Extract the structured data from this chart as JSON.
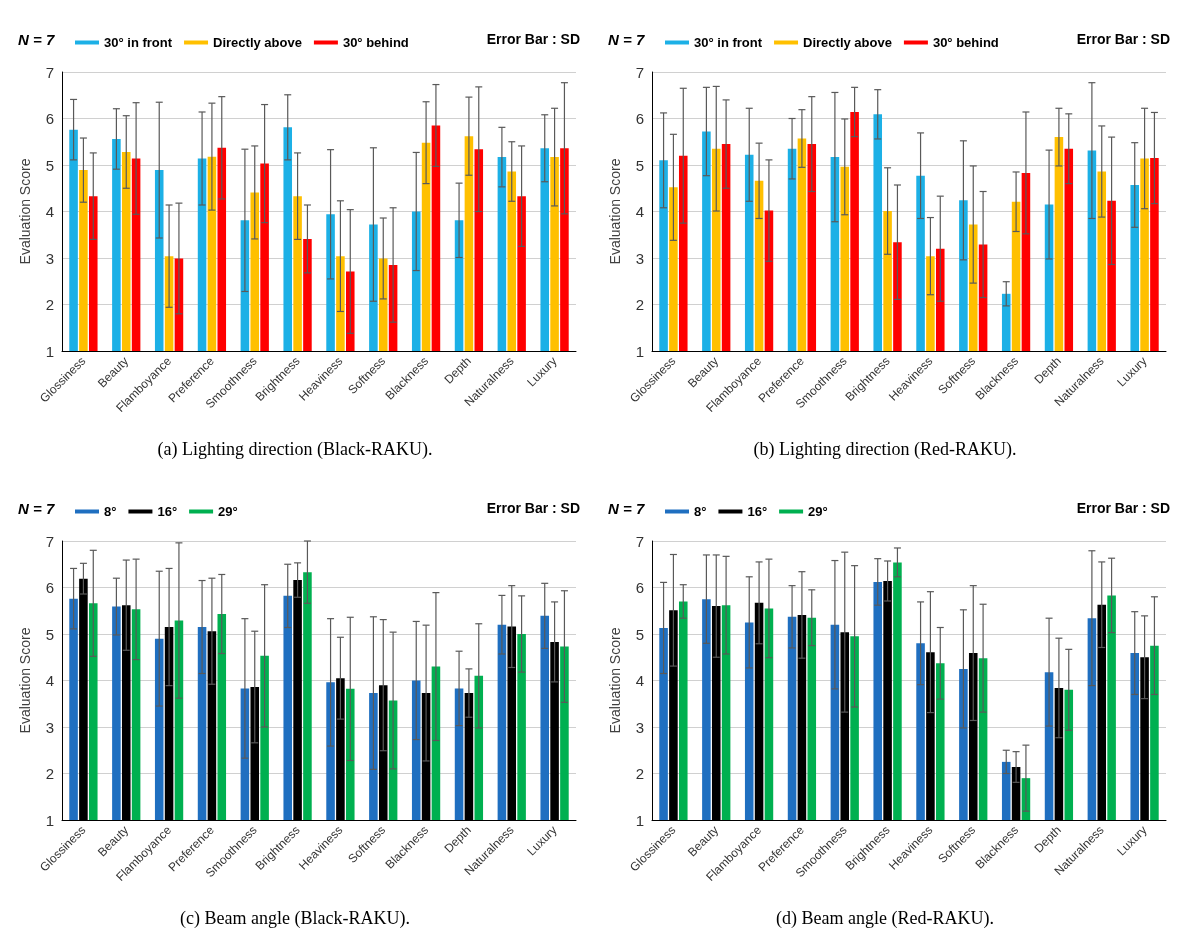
{
  "chart_data": [
    {
      "type": "bar",
      "title": "(a) Lighting direction (Black-RAKU).",
      "ylabel": "Evaluation Score",
      "annotations": [
        "N = 7",
        "Error Bar : SD"
      ],
      "categories": [
        "Glossiness",
        "Beauty",
        "Flamboyance",
        "Preference",
        "Smoothness",
        "Brightness",
        "Heaviness",
        "Softness",
        "Blackness",
        "Depth",
        "Naturalness",
        "Luxury"
      ],
      "series": [
        {
          "name": "30° in front",
          "color": "#1cb0e6",
          "values": [
            5.76,
            5.56,
            4.89,
            5.14,
            3.81,
            5.81,
            3.94,
            3.72,
            4.0,
            3.81,
            5.17,
            5.36
          ],
          "errors": [
            0.65,
            0.65,
            1.46,
            1.0,
            1.53,
            0.7,
            1.39,
            1.65,
            1.27,
            0.8,
            0.64,
            0.72
          ]
        },
        {
          "name": "Directly above",
          "color": "#ffc000",
          "values": [
            4.89,
            5.28,
            3.04,
            5.18,
            4.41,
            4.33,
            3.04,
            2.99,
            5.48,
            5.62,
            4.86,
            5.17
          ],
          "errors": [
            0.69,
            0.78,
            1.1,
            1.15,
            1.0,
            0.93,
            1.19,
            0.87,
            0.88,
            0.84,
            0.64,
            1.05
          ]
        },
        {
          "name": "30° behind",
          "color": "#ff0000",
          "values": [
            4.33,
            5.14,
            2.99,
            5.37,
            5.03,
            3.41,
            2.71,
            2.85,
            5.85,
            5.34,
            4.33,
            5.36
          ],
          "errors": [
            0.93,
            1.2,
            1.19,
            1.1,
            1.27,
            0.73,
            1.33,
            1.23,
            0.88,
            1.34,
            1.08,
            1.41
          ]
        }
      ],
      "ylim": [
        1,
        7
      ],
      "yticks": [
        1,
        2,
        3,
        4,
        5,
        6,
        7
      ],
      "grid": "y",
      "legend": "top"
    },
    {
      "type": "bar",
      "title": "(b) Lighting direction (Red-RAKU).",
      "ylabel": "Evaluation Score",
      "annotations": [
        "N = 7",
        "Error Bar : SD"
      ],
      "categories": [
        "Glossiness",
        "Beauty",
        "Flamboyance",
        "Preference",
        "Smoothness",
        "Brightness",
        "Heaviness",
        "Softness",
        "Blackness",
        "Depth",
        "Naturalness",
        "Luxury"
      ],
      "series": [
        {
          "name": "30° in front",
          "color": "#1cb0e6",
          "values": [
            5.1,
            5.72,
            5.22,
            5.35,
            5.17,
            6.09,
            4.77,
            4.24,
            2.23,
            4.15,
            5.31,
            4.57
          ],
          "errors": [
            1.02,
            0.95,
            1.0,
            0.65,
            1.39,
            0.53,
            0.92,
            1.28,
            0.26,
            1.17,
            1.46,
            0.91
          ]
        },
        {
          "name": "Directly above",
          "color": "#ffc000",
          "values": [
            4.52,
            5.35,
            4.66,
            5.57,
            4.96,
            4.01,
            3.04,
            3.72,
            4.21,
            5.6,
            4.86,
            5.14
          ],
          "errors": [
            1.14,
            1.34,
            0.81,
            0.62,
            1.03,
            0.93,
            0.83,
            1.26,
            0.64,
            0.62,
            0.98,
            1.08
          ]
        },
        {
          "name": "30° behind",
          "color": "#ff0000",
          "values": [
            5.2,
            5.45,
            4.02,
            5.45,
            6.14,
            3.34,
            3.2,
            3.29,
            4.83,
            5.35,
            4.23,
            5.15
          ],
          "errors": [
            1.45,
            0.95,
            1.09,
            1.02,
            0.53,
            1.23,
            1.13,
            1.14,
            1.31,
            0.75,
            1.37,
            0.98
          ]
        }
      ],
      "ylim": [
        1,
        7
      ],
      "yticks": [
        1,
        2,
        3,
        4,
        5,
        6,
        7
      ],
      "grid": "y",
      "legend": "top"
    },
    {
      "type": "bar",
      "title": "(c) Beam angle (Black-RAKU).",
      "ylabel": "Evaluation Score",
      "annotations": [
        "N = 7",
        "Error Bar : SD"
      ],
      "categories": [
        "Glossiness",
        "Beauty",
        "Flamboyance",
        "Preference",
        "Smoothness",
        "Brightness",
        "Heaviness",
        "Softness",
        "Blackness",
        "Depth",
        "Naturalness",
        "Luxury"
      ],
      "series": [
        {
          "name": "8°",
          "color": "#1f6fc0",
          "values": [
            5.76,
            5.59,
            4.9,
            5.15,
            3.83,
            5.82,
            3.96,
            3.73,
            4.0,
            3.83,
            5.2,
            5.39
          ],
          "errors": [
            0.65,
            0.61,
            1.45,
            1.0,
            1.5,
            0.68,
            1.37,
            1.64,
            1.27,
            0.8,
            0.63,
            0.7
          ]
        },
        {
          "name": "16°",
          "color": "#000000",
          "values": [
            6.19,
            5.62,
            5.15,
            5.06,
            3.86,
            6.16,
            4.05,
            3.9,
            3.73,
            3.73,
            5.16,
            4.83
          ],
          "errors": [
            0.33,
            0.97,
            1.26,
            1.14,
            1.2,
            0.37,
            0.88,
            1.41,
            1.46,
            0.52,
            0.88,
            0.86
          ]
        },
        {
          "name": "29°",
          "color": "#00b050",
          "values": [
            5.66,
            5.53,
            5.29,
            5.43,
            4.53,
            6.33,
            3.82,
            3.57,
            4.3,
            4.1,
            5.0,
            4.73
          ],
          "errors": [
            1.14,
            1.08,
            1.67,
            0.85,
            1.53,
            0.67,
            1.54,
            1.47,
            1.59,
            1.12,
            0.82,
            1.2
          ]
        }
      ],
      "ylim": [
        1,
        7
      ],
      "yticks": [
        1,
        2,
        3,
        4,
        5,
        6,
        7
      ],
      "grid": "y",
      "legend": "top"
    },
    {
      "type": "bar",
      "title": "(d) Beam angle (Red-RAKU).",
      "ylabel": "Evaluation Score",
      "annotations": [
        "N = 7",
        "Error Bar : SD"
      ],
      "categories": [
        "Glossiness",
        "Beauty",
        "Flamboyance",
        "Preference",
        "Smoothness",
        "Brightness",
        "Heaviness",
        "Softness",
        "Blackness",
        "Depth",
        "Naturalness",
        "Luxury"
      ],
      "series": [
        {
          "name": "8°",
          "color": "#1f6fc0",
          "values": [
            5.13,
            5.75,
            5.25,
            5.37,
            5.2,
            6.12,
            4.8,
            4.25,
            2.25,
            4.18,
            5.34,
            4.59
          ],
          "errors": [
            0.98,
            0.95,
            0.98,
            0.67,
            1.38,
            0.5,
            0.89,
            1.27,
            0.25,
            1.16,
            1.45,
            0.89
          ]
        },
        {
          "name": "16°",
          "color": "#000000",
          "values": [
            5.51,
            5.6,
            5.67,
            5.41,
            5.04,
            6.14,
            4.61,
            4.59,
            2.14,
            3.84,
            5.63,
            4.5
          ],
          "errors": [
            1.2,
            1.1,
            0.88,
            0.93,
            1.72,
            0.43,
            1.3,
            1.45,
            0.33,
            1.07,
            0.92,
            0.89
          ]
        },
        {
          "name": "29°",
          "color": "#00b050",
          "values": [
            5.7,
            5.62,
            5.55,
            5.35,
            4.95,
            6.54,
            4.37,
            4.48,
            1.9,
            3.8,
            5.83,
            4.75
          ],
          "errors": [
            0.36,
            1.05,
            1.06,
            0.6,
            1.52,
            0.31,
            0.77,
            1.16,
            0.71,
            0.87,
            0.8,
            1.05
          ]
        }
      ],
      "ylim": [
        1,
        7
      ],
      "yticks": [
        1,
        2,
        3,
        4,
        5,
        6,
        7
      ],
      "grid": "y",
      "legend": "top"
    }
  ]
}
